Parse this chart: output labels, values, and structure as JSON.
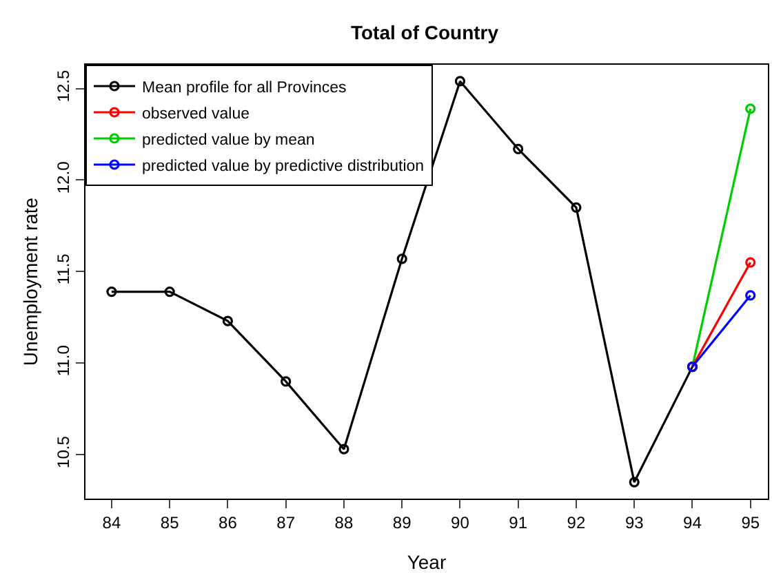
{
  "chart_data": {
    "type": "line",
    "title": "Total of Country",
    "xlabel": "Year",
    "ylabel": "Unemployment rate",
    "xlim": [
      83.55,
      95.3
    ],
    "xticks": [
      84,
      85,
      86,
      87,
      88,
      89,
      90,
      91,
      92,
      93,
      94,
      95
    ],
    "ylim": [
      10.26,
      12.63
    ],
    "yticks": [
      10.5,
      {
        "value": 11,
        "label": "11.0"
      },
      11.5,
      {
        "value": 12,
        "label": "12.0"
      },
      12.5
    ],
    "series": [
      {
        "name": "Mean profile for all Provinces",
        "color": "#000000",
        "x": [
          84,
          85,
          86,
          87,
          88,
          89,
          90,
          91,
          92,
          93,
          94
        ],
        "values": [
          11.39,
          11.39,
          11.23,
          10.9,
          10.53,
          11.57,
          12.54,
          12.17,
          11.85,
          10.35,
          10.98
        ]
      },
      {
        "name": "observed value",
        "color": "#ff0000",
        "x": [
          94,
          95
        ],
        "values": [
          10.98,
          11.55
        ]
      },
      {
        "name": "predicted value by mean",
        "color": "#00cd00",
        "x": [
          94,
          95
        ],
        "values": [
          10.98,
          12.39
        ]
      },
      {
        "name": "predicted value by predictive distribution",
        "color": "#0000ff",
        "x": [
          94,
          95
        ],
        "values": [
          10.98,
          11.37
        ]
      }
    ],
    "legend": "top left",
    "grid": false,
    "marker": "circle",
    "line_style": "solid"
  }
}
